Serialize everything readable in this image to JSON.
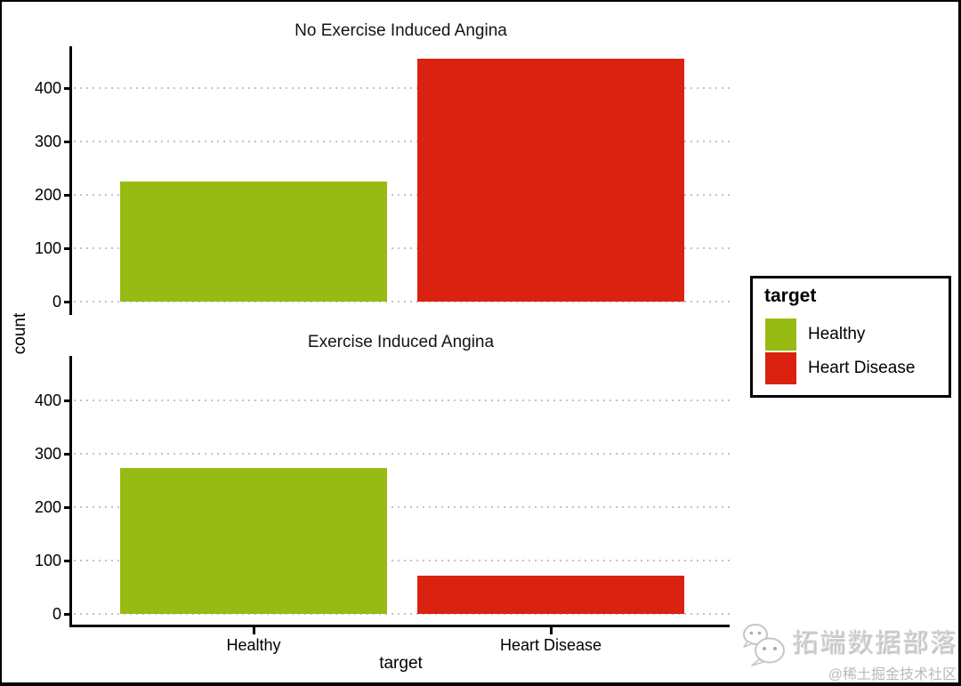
{
  "chart_data": {
    "type": "bar",
    "faceted": true,
    "facet_layout": "rows",
    "categories": [
      "Healthy",
      "Heart Disease"
    ],
    "facets": [
      {
        "title": "No Exercise Induced Angina",
        "values": [
          225,
          455
        ]
      },
      {
        "title": "Exercise Induced Angina",
        "values": [
          274,
          71
        ]
      }
    ],
    "series_colors": [
      "#98bb14",
      "#db2210"
    ],
    "xlabel": "target",
    "ylabel": "count",
    "yticks": [
      0,
      100,
      200,
      300,
      400
    ],
    "ylim": [
      0,
      480
    ],
    "grid": "dotted-horizontal",
    "grid_color": "#c3c3c3",
    "axis_color": "#000000",
    "legend": {
      "title": "target",
      "position": "right",
      "entries": [
        {
          "label": "Healthy",
          "color": "#98bb14"
        },
        {
          "label": "Heart Disease",
          "color": "#db2210"
        }
      ]
    }
  },
  "watermark": {
    "brand": "拓端数据部落",
    "community": "@稀土掘金技术社区",
    "icon": "wechat-icon"
  }
}
